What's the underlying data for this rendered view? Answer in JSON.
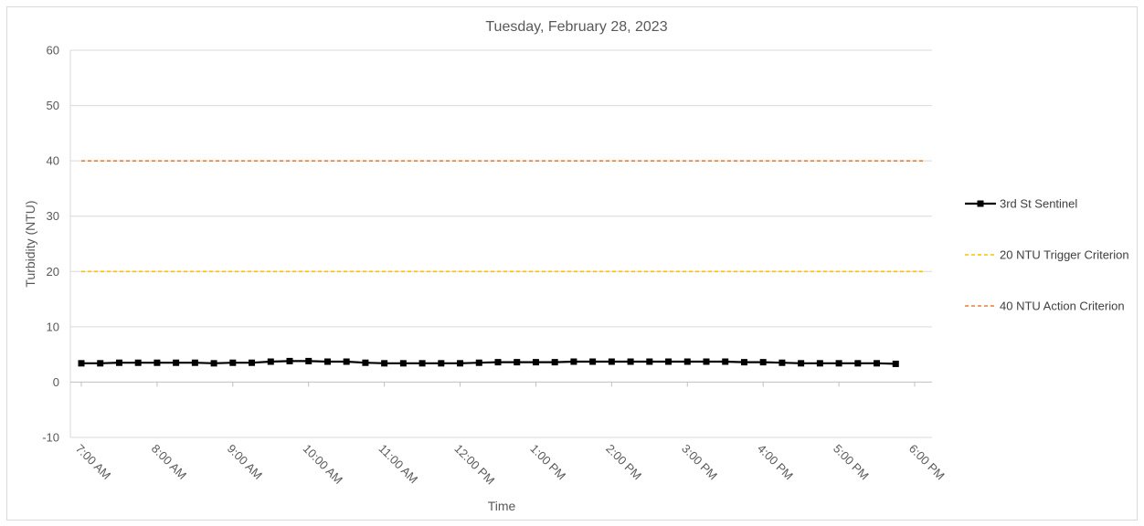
{
  "chart_data": {
    "type": "line",
    "title": "Tuesday, February 28, 2023",
    "xlabel": "Time",
    "ylabel": "Turbidity (NTU)",
    "ylim": [
      -10,
      60
    ],
    "yticks": [
      -10,
      0,
      10,
      20,
      30,
      40,
      50,
      60
    ],
    "xlim": [
      "7:00 AM",
      "6:00 PM"
    ],
    "xticks": [
      "7:00 AM",
      "8:00 AM",
      "9:00 AM",
      "10:00 AM",
      "11:00 AM",
      "12:00 PM",
      "1:00 PM",
      "2:00 PM",
      "3:00 PM",
      "4:00 PM",
      "5:00 PM",
      "6:00 PM"
    ],
    "grid": "horizontal",
    "legend_position": "right",
    "series": [
      {
        "name": "3rd St Sentinel",
        "color": "#000000",
        "style": "solid",
        "marker": "square",
        "x": [
          "7:00 AM",
          "7:15 AM",
          "7:30 AM",
          "7:45 AM",
          "8:00 AM",
          "8:15 AM",
          "8:30 AM",
          "8:45 AM",
          "9:00 AM",
          "9:15 AM",
          "9:30 AM",
          "9:45 AM",
          "10:00 AM",
          "10:15 AM",
          "10:30 AM",
          "10:45 AM",
          "11:00 AM",
          "11:15 AM",
          "11:30 AM",
          "11:45 AM",
          "12:00 PM",
          "12:15 PM",
          "12:30 PM",
          "12:45 PM",
          "1:00 PM",
          "1:15 PM",
          "1:30 PM",
          "1:45 PM",
          "2:00 PM",
          "2:15 PM",
          "2:30 PM",
          "2:45 PM",
          "3:00 PM",
          "3:15 PM",
          "3:30 PM",
          "3:45 PM",
          "4:00 PM",
          "4:15 PM",
          "4:30 PM",
          "4:45 PM",
          "5:00 PM",
          "5:15 PM",
          "5:30 PM",
          "5:45 PM"
        ],
        "values": [
          3.4,
          3.4,
          3.5,
          3.5,
          3.5,
          3.5,
          3.5,
          3.4,
          3.5,
          3.5,
          3.7,
          3.8,
          3.8,
          3.7,
          3.7,
          3.5,
          3.4,
          3.4,
          3.4,
          3.4,
          3.4,
          3.5,
          3.6,
          3.6,
          3.6,
          3.6,
          3.7,
          3.7,
          3.7,
          3.7,
          3.7,
          3.7,
          3.7,
          3.7,
          3.7,
          3.6,
          3.6,
          3.5,
          3.4,
          3.4,
          3.4,
          3.4,
          3.4,
          3.3
        ]
      },
      {
        "name": "20 NTU Trigger Criterion",
        "color": "#ffc000",
        "style": "dashed",
        "x": [
          "7:00 AM",
          "6:00 PM"
        ],
        "values": [
          20,
          20
        ]
      },
      {
        "name": "40 NTU Action Criterion",
        "color": "#ed7d31",
        "style": "dashed",
        "x": [
          "7:00 AM",
          "6:00 PM"
        ],
        "values": [
          40,
          40
        ]
      }
    ]
  }
}
